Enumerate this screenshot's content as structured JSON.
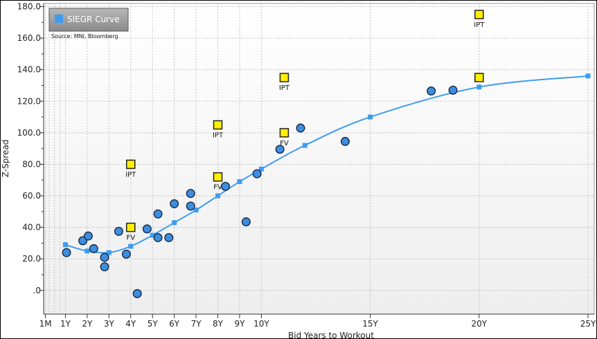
{
  "chart_data": {
    "type": "scatter",
    "title": "",
    "xlabel": "Bid Years to Workout",
    "ylabel": "Z-Spread",
    "source": "Source: MNI, Bloomberg",
    "legend": {
      "label": "SIEGR Curve",
      "placement": "top-left"
    },
    "grid": true,
    "xlim": [
      0,
      25
    ],
    "ylim": [
      -15,
      182
    ],
    "x_ticks": [
      {
        "value": 0.0833,
        "label": "1M"
      },
      {
        "value": 1,
        "label": "1Y"
      },
      {
        "value": 2,
        "label": "2Y"
      },
      {
        "value": 3,
        "label": "3Y"
      },
      {
        "value": 4,
        "label": "4Y"
      },
      {
        "value": 5,
        "label": "5Y"
      },
      {
        "value": 6,
        "label": "6Y"
      },
      {
        "value": 7,
        "label": "7Y"
      },
      {
        "value": 8,
        "label": "8Y"
      },
      {
        "value": 9,
        "label": "9Y"
      },
      {
        "value": 10,
        "label": "10Y"
      },
      {
        "value": 15,
        "label": "15Y"
      },
      {
        "value": 20,
        "label": "20Y"
      },
      {
        "value": 25,
        "label": "25Y"
      }
    ],
    "y_ticks": [
      {
        "value": 0,
        "label": ".0"
      },
      {
        "value": 20,
        "label": "20.0"
      },
      {
        "value": 40,
        "label": "40.0"
      },
      {
        "value": 60,
        "label": "60.0"
      },
      {
        "value": 80,
        "label": "80.0"
      },
      {
        "value": 100,
        "label": "100.0"
      },
      {
        "value": 120,
        "label": "120.0"
      },
      {
        "value": 140,
        "label": "140.0"
      },
      {
        "value": 160,
        "label": "160.0"
      },
      {
        "value": 180,
        "label": "180.0"
      }
    ],
    "colors": {
      "curve": "#3d9cf0",
      "bond": "#3b8ee0",
      "bond_outline": "#1a2a44",
      "marker": "#ffee00",
      "marker_outline": "#222222"
    },
    "series": [
      {
        "name": "SIEGR Curve",
        "kind": "line",
        "points": [
          [
            1,
            29
          ],
          [
            2,
            25
          ],
          [
            3,
            24
          ],
          [
            4,
            28
          ],
          [
            5,
            35
          ],
          [
            6,
            43
          ],
          [
            7,
            51
          ],
          [
            8,
            60
          ],
          [
            9,
            69
          ],
          [
            10,
            77
          ],
          [
            12,
            92
          ],
          [
            15,
            110
          ],
          [
            20,
            129
          ],
          [
            25,
            136
          ]
        ]
      },
      {
        "kind": "scatter",
        "points": [
          [
            1.05,
            24
          ],
          [
            1.8,
            31.5
          ],
          [
            2.05,
            34.5
          ],
          [
            2.3,
            26.5
          ],
          [
            2.8,
            21
          ],
          [
            2.8,
            15
          ],
          [
            3.45,
            37.5
          ],
          [
            3.8,
            23
          ],
          [
            4.3,
            -2
          ],
          [
            4.75,
            39
          ],
          [
            5.25,
            48.5
          ],
          [
            5.25,
            33.5
          ],
          [
            5.75,
            33.5
          ],
          [
            6.0,
            55
          ],
          [
            6.75,
            61.5
          ],
          [
            6.75,
            53.5
          ],
          [
            8.35,
            66
          ],
          [
            9.3,
            43.5
          ],
          [
            9.8,
            74
          ],
          [
            10.85,
            89.5
          ],
          [
            11.8,
            103
          ],
          [
            13.85,
            94.5
          ],
          [
            17.8,
            126.5
          ],
          [
            18.8,
            127
          ]
        ]
      },
      {
        "kind": "marker",
        "points": [
          {
            "x": 4,
            "y": 80,
            "label": "IPT"
          },
          {
            "x": 4,
            "y": 40,
            "label": "FV"
          },
          {
            "x": 8,
            "y": 105,
            "label": "IPT"
          },
          {
            "x": 8,
            "y": 72,
            "label": "FV"
          },
          {
            "x": 11.05,
            "y": 135,
            "label": "IPT"
          },
          {
            "x": 11.05,
            "y": 100,
            "label": "FV"
          },
          {
            "x": 20,
            "y": 175,
            "label": "IPT"
          },
          {
            "x": 20,
            "y": 135,
            "label": ""
          }
        ]
      }
    ]
  }
}
